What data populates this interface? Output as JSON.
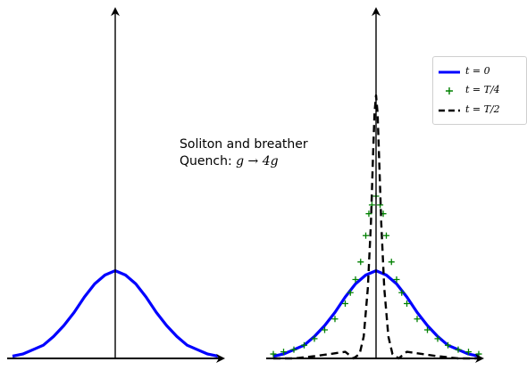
{
  "annotation": {
    "line1": "Soliton and breather",
    "line2_prefix": "Quench: ",
    "line2_math": "g → 4g"
  },
  "colors": {
    "soliton": "#0000ff",
    "quarter": "#008000",
    "half": "#000000",
    "axes": "#000000"
  },
  "chart_data": [
    {
      "type": "line",
      "panel": "left",
      "series": [
        {
          "name": "t = 0",
          "style": "solid-blue",
          "x": [
            -1.0,
            -0.9,
            -0.8,
            -0.7,
            -0.6,
            -0.5,
            -0.4,
            -0.3,
            -0.2,
            -0.1,
            0.0,
            0.1,
            0.2,
            0.3,
            0.4,
            0.5,
            0.6,
            0.7,
            0.8,
            0.9,
            1.0
          ],
          "y": [
            0.01,
            0.02,
            0.04,
            0.06,
            0.1,
            0.15,
            0.21,
            0.28,
            0.34,
            0.38,
            0.4,
            0.38,
            0.34,
            0.28,
            0.21,
            0.15,
            0.1,
            0.06,
            0.04,
            0.02,
            0.01
          ]
        }
      ],
      "xlim": [
        -1,
        1
      ],
      "ylim": [
        0,
        1.35
      ]
    },
    {
      "type": "line",
      "panel": "right",
      "series": [
        {
          "name": "t = 0",
          "style": "solid-blue",
          "x": [
            -1.0,
            -0.9,
            -0.8,
            -0.7,
            -0.6,
            -0.5,
            -0.4,
            -0.3,
            -0.2,
            -0.1,
            0.0,
            0.1,
            0.2,
            0.3,
            0.4,
            0.5,
            0.6,
            0.7,
            0.8,
            0.9,
            1.0
          ],
          "y": [
            0.01,
            0.02,
            0.04,
            0.06,
            0.1,
            0.15,
            0.21,
            0.28,
            0.34,
            0.38,
            0.4,
            0.38,
            0.34,
            0.28,
            0.21,
            0.15,
            0.1,
            0.06,
            0.04,
            0.02,
            0.01
          ]
        },
        {
          "name": "t = T/4",
          "style": "green-plus",
          "x": [
            -1.0,
            -0.9,
            -0.8,
            -0.7,
            -0.6,
            -0.5,
            -0.4,
            -0.3,
            -0.25,
            -0.2,
            -0.15,
            -0.1,
            -0.07,
            -0.04,
            0.0,
            0.04,
            0.07,
            0.1,
            0.15,
            0.2,
            0.25,
            0.3,
            0.4,
            0.5,
            0.6,
            0.7,
            0.8,
            0.9,
            1.0
          ],
          "y": [
            0.02,
            0.03,
            0.04,
            0.06,
            0.09,
            0.13,
            0.18,
            0.25,
            0.3,
            0.36,
            0.44,
            0.56,
            0.66,
            0.7,
            0.74,
            0.7,
            0.66,
            0.56,
            0.44,
            0.36,
            0.3,
            0.25,
            0.18,
            0.13,
            0.09,
            0.06,
            0.04,
            0.03,
            0.02
          ]
        },
        {
          "name": "t = T/2",
          "style": "dashed-black",
          "x": [
            -1.0,
            -0.8,
            -0.6,
            -0.45,
            -0.3,
            -0.22,
            -0.16,
            -0.12,
            -0.08,
            -0.05,
            -0.03,
            -0.015,
            0.0,
            0.015,
            0.03,
            0.05,
            0.08,
            0.12,
            0.16,
            0.22,
            0.3,
            0.45,
            0.6,
            0.8,
            1.0
          ],
          "y": [
            0.0,
            0.0,
            0.01,
            0.02,
            0.03,
            0.0,
            0.02,
            0.1,
            0.32,
            0.62,
            0.92,
            1.12,
            1.2,
            1.12,
            0.92,
            0.62,
            0.32,
            0.1,
            0.02,
            0.0,
            0.03,
            0.02,
            0.01,
            0.0,
            0.0
          ]
        }
      ],
      "xlim": [
        -1,
        1
      ],
      "ylim": [
        0,
        1.35
      ],
      "legend": "top-right"
    }
  ],
  "legend": {
    "entries": [
      {
        "label": "t = 0",
        "style": "solid-blue"
      },
      {
        "label": "t = T/4",
        "style": "green-plus"
      },
      {
        "label": "t = T/2",
        "style": "dashed-black"
      }
    ]
  }
}
